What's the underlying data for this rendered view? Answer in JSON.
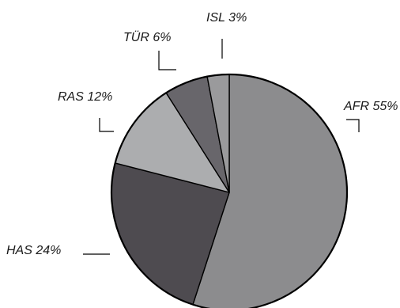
{
  "chart_data": {
    "type": "pie",
    "start_angle_deg": 0,
    "direction": "clockwise",
    "slices": [
      {
        "category": "AFR",
        "label": "AFR 55%",
        "value": 55,
        "color": "#8c8c8e"
      },
      {
        "category": "HAS",
        "label": "HAS 24%",
        "value": 24,
        "color": "#4e4b50"
      },
      {
        "category": "RAS",
        "label": "RAS 12%",
        "value": 12,
        "color": "#acadaf"
      },
      {
        "category": "TÜR",
        "label": "TÜR 6%",
        "value": 6,
        "color": "#68666b"
      },
      {
        "category": "ISL",
        "label": "ISL 3%",
        "value": 3,
        "color": "#9a9a9c"
      }
    ],
    "stroke_color": "#000000",
    "label_color": "#1a1a1a"
  }
}
